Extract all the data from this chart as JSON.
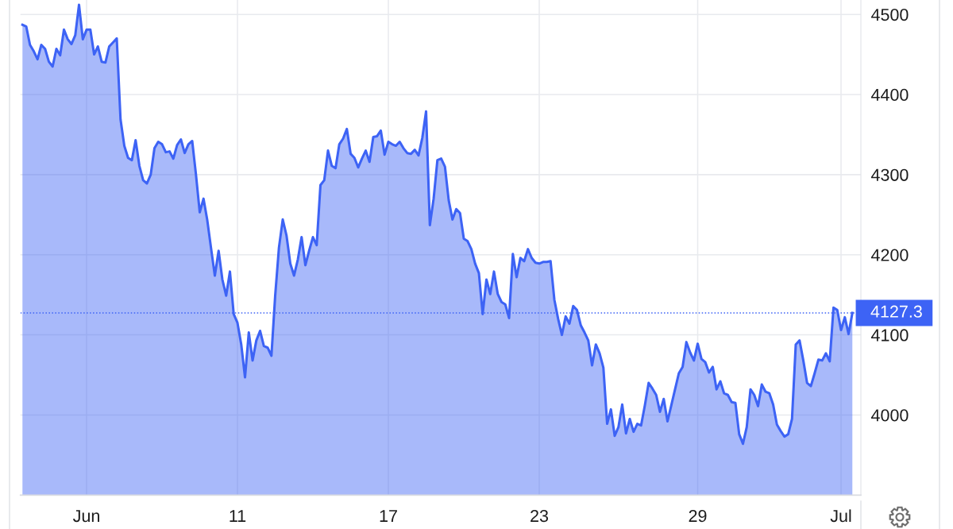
{
  "chart_data": {
    "type": "area",
    "color": "#3d63f5",
    "categories": [
      null,
      null,
      null,
      null,
      null,
      null,
      null,
      null,
      null,
      null,
      null,
      null,
      null,
      null,
      null,
      null,
      null,
      "Jun",
      null,
      null,
      null,
      null,
      null,
      null,
      null,
      null,
      null,
      null,
      null,
      null,
      null,
      null,
      null,
      null,
      null,
      null,
      null,
      null,
      null,
      null,
      null,
      null,
      null,
      null,
      null,
      null,
      null,
      null,
      null,
      null,
      null,
      null,
      null,
      null,
      null,
      null,
      null,
      "11",
      null,
      null,
      null,
      null,
      null,
      null,
      null,
      null,
      null,
      null,
      null,
      null,
      null,
      null,
      null,
      null,
      null,
      null,
      null,
      null,
      null,
      null,
      null,
      null,
      null,
      null,
      null,
      null,
      null,
      null,
      null,
      null,
      null,
      null,
      null,
      null,
      null,
      null,
      null,
      "17",
      null,
      null,
      null,
      null,
      null,
      null,
      null,
      null,
      null,
      null,
      null,
      null,
      null,
      null,
      null,
      null,
      null,
      null,
      null,
      null,
      null,
      null,
      null,
      null,
      null,
      null,
      null,
      null,
      null,
      null,
      null,
      null,
      null,
      null,
      null,
      null,
      null,
      null,
      null,
      "23",
      null,
      null,
      null,
      null,
      null,
      null,
      null,
      null,
      null,
      null,
      null,
      null,
      null,
      null,
      null,
      null,
      null,
      null,
      null,
      null,
      null,
      null,
      null,
      null,
      null,
      null,
      null,
      null,
      null,
      null,
      null,
      null,
      null,
      null,
      null,
      null,
      null,
      null,
      null,
      null,
      null,
      "29",
      null,
      null,
      null,
      null,
      null,
      null,
      null,
      null,
      null,
      null,
      null,
      null,
      null,
      null,
      null,
      null,
      null,
      null,
      null,
      null,
      null,
      null,
      null,
      null,
      null,
      null,
      null,
      null,
      null,
      null,
      null,
      null,
      null,
      null,
      null,
      null,
      null,
      "Jul",
      null,
      null,
      null
    ],
    "values": [
      4487,
      4485,
      4462,
      4454,
      4444,
      4462,
      4457,
      4441,
      4435,
      4457,
      4449,
      4481,
      4469,
      4463,
      4474,
      4512,
      4469,
      4481,
      4481,
      4450,
      4460,
      4441,
      4440,
      4460,
      4465,
      4470,
      4369,
      4336,
      4321,
      4318,
      4343,
      4311,
      4293,
      4289,
      4300,
      4333,
      4341,
      4338,
      4328,
      4329,
      4320,
      4337,
      4344,
      4327,
      4338,
      4342,
      4300,
      4253,
      4270,
      4243,
      4208,
      4174,
      4205,
      4169,
      4149,
      4179,
      4126,
      4115,
      4088,
      4047,
      4103,
      4068,
      4093,
      4105,
      4086,
      4084,
      4074,
      4149,
      4209,
      4244,
      4224,
      4189,
      4174,
      4194,
      4222,
      4187,
      4205,
      4222,
      4212,
      4287,
      4293,
      4330,
      4311,
      4308,
      4338,
      4345,
      4357,
      4326,
      4321,
      4309,
      4320,
      4330,
      4316,
      4347,
      4348,
      4355,
      4325,
      4341,
      4338,
      4336,
      4341,
      4333,
      4327,
      4326,
      4331,
      4324,
      4346,
      4379,
      4237,
      4270,
      4318,
      4320,
      4310,
      4268,
      4244,
      4257,
      4252,
      4220,
      4217,
      4207,
      4189,
      4177,
      4126,
      4169,
      4151,
      4179,
      4151,
      4141,
      4138,
      4121,
      4201,
      4172,
      4196,
      4192,
      4207,
      4196,
      4190,
      4189,
      4191,
      4191,
      4192,
      4144,
      4120,
      4100,
      4123,
      4114,
      4136,
      4131,
      4112,
      4103,
      4093,
      4062,
      4088,
      4077,
      4059,
      3989,
      4007,
      3974,
      3985,
      4013,
      3977,
      3995,
      3979,
      3989,
      3987,
      4012,
      4040,
      4033,
      4025,
      4004,
      4020,
      3992,
      4012,
      4032,
      4052,
      4060,
      4091,
      4078,
      4068,
      4089,
      4070,
      4066,
      4053,
      4060,
      4032,
      4042,
      4027,
      4025,
      4016,
      4015,
      3976,
      3964,
      3985,
      4032,
      4025,
      4011,
      4038,
      4029,
      4027,
      4013,
      3988,
      3980,
      3973,
      3976,
      3995,
      4088,
      4093,
      4068,
      4040,
      4036,
      4052,
      4069,
      4068,
      4077,
      4067,
      4134,
      4131,
      4106,
      4122,
      4101,
      4127.3
    ],
    "ylim": [
      3900,
      4518
    ],
    "yticks": [
      4000,
      4100,
      4200,
      4300,
      4400,
      4500
    ],
    "grid": true,
    "ref_lines": [
      {
        "axis": "y",
        "value": 4127.3,
        "label": "4127.3",
        "color": "#3d63f5",
        "line_style": "dotted"
      }
    ]
  }
}
